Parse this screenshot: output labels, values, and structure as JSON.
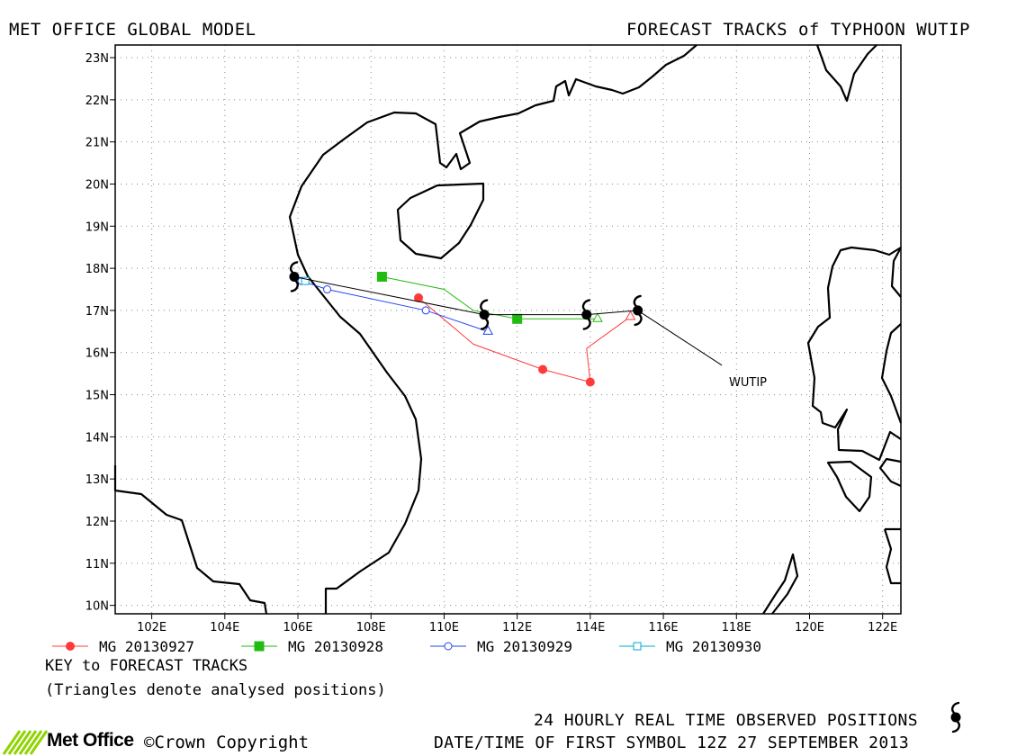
{
  "header": {
    "left": "MET OFFICE GLOBAL MODEL",
    "right": "FORECAST TRACKS of TYPHOON WUTIP"
  },
  "map": {
    "lon_range": [
      101,
      122.5
    ],
    "lat_range": [
      9.8,
      23.3
    ],
    "x_ticks": [
      "102E",
      "104E",
      "106E",
      "108E",
      "110E",
      "112E",
      "114E",
      "116E",
      "118E",
      "120E",
      "122E"
    ],
    "y_ticks": [
      "10N",
      "11N",
      "12N",
      "13N",
      "14N",
      "15N",
      "16N",
      "17N",
      "18N",
      "19N",
      "20N",
      "21N",
      "22N",
      "23N"
    ],
    "storm_label": "WUTIP"
  },
  "chart_data": {
    "type": "map-tracks",
    "observed": {
      "name": "24 HOURLY REAL TIME OBSERVED POSITIONS",
      "points": [
        [
          115.3,
          17.0
        ],
        [
          113.9,
          16.9
        ],
        [
          111.1,
          16.9
        ],
        [
          105.9,
          17.8
        ]
      ]
    },
    "series": [
      {
        "name": "MG 20130927",
        "color": "#ff3a3a",
        "marker": "filled-circle",
        "points": [
          [
            115.1,
            16.85
          ],
          [
            113.9,
            16.1
          ],
          [
            114.0,
            15.3
          ],
          [
            112.7,
            15.6
          ],
          [
            110.8,
            16.2
          ],
          [
            109.3,
            17.3
          ]
        ],
        "analysed": [
          115.1,
          16.85
        ]
      },
      {
        "name": "MG 20130928",
        "color": "#22bb11",
        "marker": "filled-square",
        "points": [
          [
            114.2,
            16.8
          ],
          [
            112.0,
            16.8
          ],
          [
            110.8,
            17.0
          ],
          [
            110.0,
            17.5
          ],
          [
            108.3,
            17.8
          ]
        ],
        "analysed": [
          114.2,
          16.8
        ]
      },
      {
        "name": "MG 20130929",
        "color": "#2244ee",
        "marker": "open-circle",
        "points": [
          [
            111.2,
            16.5
          ],
          [
            109.5,
            17.0
          ],
          [
            106.8,
            17.5
          ],
          [
            106.1,
            17.7
          ]
        ],
        "analysed": [
          111.2,
          16.5
        ]
      },
      {
        "name": "MG 20130930",
        "color": "#00aacc",
        "marker": "open-square",
        "points": [
          [
            106.2,
            17.7
          ]
        ],
        "analysed": null
      }
    ],
    "label_pointer": [
      [
        115.3,
        17.0
      ],
      [
        117.6,
        15.7
      ]
    ]
  },
  "key": {
    "title": "KEY to FORECAST TRACKS",
    "note": "(Triangles denote analysed positions)"
  },
  "footer": {
    "observed_label": "24 HOURLY REAL TIME OBSERVED POSITIONS",
    "datetime": "DATE/TIME OF FIRST SYMBOL 12Z 27 SEPTEMBER 2013",
    "logo_text": "Met Office",
    "copyright": "Crown Copyright"
  },
  "colors": {
    "land_outline": "#000000",
    "grid": "#888888"
  }
}
